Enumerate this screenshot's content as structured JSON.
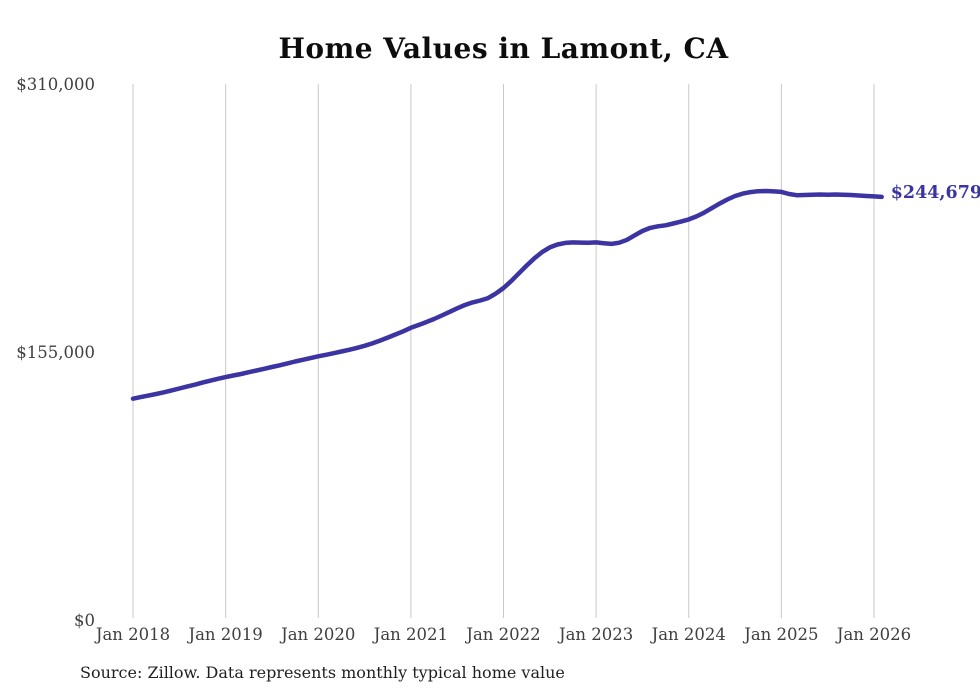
{
  "title": "Home Values in Lamont, CA",
  "source_note": "Source: Zillow. Data represents monthly typical home value",
  "colors": {
    "line": "#3b34a2",
    "end_label": "#3b34a2",
    "grid": "#c9c9c9",
    "title_text": "#0d0d0d",
    "axis_text": "#3f3f3f",
    "source_text": "#1f1f1f",
    "background": "#ffffff"
  },
  "chart_data": {
    "type": "line",
    "title": "Home Values in Lamont, CA",
    "xlabel": "",
    "ylabel": "",
    "ylim": [
      0,
      310000
    ],
    "grid": "vertical-only",
    "legend": "none",
    "x_tick_labels": [
      "Jan 2018",
      "Jan 2019",
      "Jan 2020",
      "Jan 2021",
      "Jan 2022",
      "Jan 2023",
      "Jan 2024",
      "Jan 2025",
      "Jan 2026"
    ],
    "y_tick_values": [
      0,
      155000,
      310000
    ],
    "y_tick_labels": [
      "$0",
      "$155,000",
      "$310,000"
    ],
    "months_start": "Jan 2018",
    "months_end": "Feb 2026",
    "end_label": "$244,679",
    "last_value": 244679,
    "series": [
      {
        "name": "Monthly typical home value",
        "values": [
          128000,
          128900,
          129800,
          130700,
          131700,
          132800,
          133900,
          135000,
          136100,
          137300,
          138400,
          139500,
          140500,
          141400,
          142300,
          143300,
          144300,
          145300,
          146300,
          147300,
          148400,
          149500,
          150500,
          151500,
          152500,
          153400,
          154300,
          155300,
          156300,
          157400,
          158600,
          160000,
          161600,
          163300,
          165100,
          167000,
          169000,
          170600,
          172300,
          174100,
          176100,
          178200,
          180300,
          182200,
          183700,
          184800,
          186200,
          188800,
          192000,
          196000,
          200500,
          205000,
          209200,
          212800,
          215500,
          217200,
          218100,
          218400,
          218300,
          218200,
          218400,
          217900,
          217500,
          218200,
          219900,
          222500,
          225000,
          226800,
          227700,
          228300,
          229300,
          230400,
          231700,
          233400,
          235600,
          238200,
          240800,
          243200,
          245200,
          246600,
          247500,
          248000,
          248100,
          247900,
          247600,
          246400,
          245700,
          245800,
          246000,
          246100,
          246000,
          246100,
          246000,
          245800,
          245500,
          245200,
          245000,
          244679
        ]
      }
    ]
  }
}
